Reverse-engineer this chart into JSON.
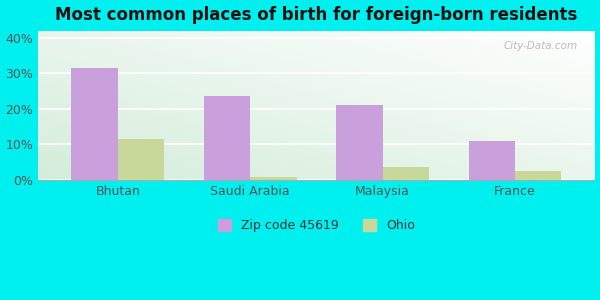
{
  "title": "Most common places of birth for foreign-born residents",
  "categories": [
    "Bhutan",
    "Saudi Arabia",
    "Malaysia",
    "France"
  ],
  "zip_values": [
    31.5,
    23.5,
    21.0,
    11.0
  ],
  "ohio_values": [
    11.5,
    0.7,
    3.5,
    2.5
  ],
  "zip_color": "#c9a0dc",
  "ohio_color": "#c8d89a",
  "bar_width": 0.35,
  "ylim": [
    0,
    42
  ],
  "yticks": [
    0,
    10,
    20,
    30,
    40
  ],
  "ytick_labels": [
    "0%",
    "10%",
    "20%",
    "30%",
    "40%"
  ],
  "legend_zip": "Zip code 45619",
  "legend_ohio": "Ohio",
  "title_fontsize": 12,
  "tick_fontsize": 9,
  "legend_fontsize": 9,
  "bg_outer": "#00f0f0",
  "title_color": "#111111",
  "tick_color": "#555555",
  "legend_text_color": "#333333"
}
